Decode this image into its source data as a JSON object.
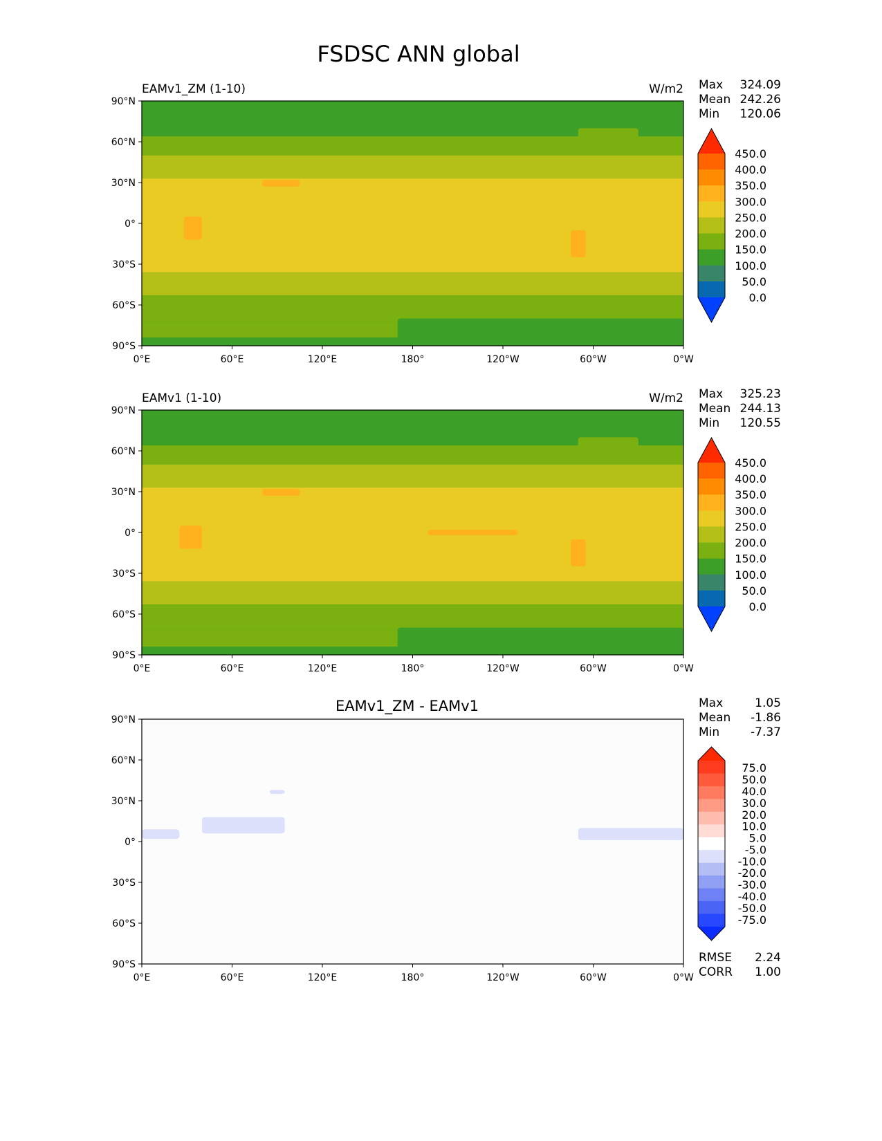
{
  "chart_data": {
    "type": "heatmap",
    "title": "FSDSC ANN global",
    "xticks": [
      "0°E",
      "60°E",
      "120°E",
      "180°",
      "120°W",
      "60°W",
      "0°W"
    ],
    "yticks": [
      "90°N",
      "60°N",
      "30°N",
      "0°",
      "30°S",
      "60°S",
      "90°S"
    ],
    "xlim": [
      0,
      360
    ],
    "ylim": [
      -90,
      90
    ],
    "panels": [
      {
        "title": "EAMv1_ZM (1-10)",
        "units": "W/m2",
        "stats": [
          [
            "Max",
            "324.09"
          ],
          [
            "Mean",
            "242.26"
          ],
          [
            "Min",
            "120.06"
          ]
        ],
        "colorbar": "abs",
        "background": "#3ca028",
        "zonal_bands": [
          {
            "lat": [
              64,
              90
            ],
            "color": "#3ca028"
          },
          {
            "lat": [
              50,
              64
            ],
            "color": "#7ab010"
          },
          {
            "lat": [
              33,
              50
            ],
            "color": "#b4c018"
          },
          {
            "lat": [
              -36,
              33
            ],
            "color": "#eacb23"
          },
          {
            "lat": [
              -53,
              -36
            ],
            "color": "#b4c018"
          },
          {
            "lat": [
              -72,
              -53
            ],
            "color": "#7ab010"
          },
          {
            "lat": [
              -84,
              -72
            ],
            "color": "#7ab010"
          },
          {
            "lat": [
              -90,
              -84
            ],
            "color": "#3ca028"
          }
        ],
        "patches": [
          {
            "lon": [
              290,
              330
            ],
            "lat": [
              58,
              70
            ],
            "color": "#7ab010"
          },
          {
            "lon": [
              170,
              360
            ],
            "lat": [
              -90,
              -70
            ],
            "color": "#3ca028"
          },
          {
            "lon": [
              80,
              105
            ],
            "lat": [
              27,
              32
            ],
            "color": "#ffb21e"
          },
          {
            "lon": [
              28,
              40
            ],
            "lat": [
              -12,
              5
            ],
            "color": "#ffb21e"
          },
          {
            "lon": [
              285,
              295
            ],
            "lat": [
              -25,
              -5
            ],
            "color": "#ffb21e"
          }
        ]
      },
      {
        "title": "EAMv1 (1-10)",
        "units": "W/m2",
        "stats": [
          [
            "Max",
            "325.23"
          ],
          [
            "Mean",
            "244.13"
          ],
          [
            "Min",
            "120.55"
          ]
        ],
        "colorbar": "abs",
        "background": "#3ca028",
        "zonal_bands": [
          {
            "lat": [
              64,
              90
            ],
            "color": "#3ca028"
          },
          {
            "lat": [
              50,
              64
            ],
            "color": "#7ab010"
          },
          {
            "lat": [
              33,
              50
            ],
            "color": "#b4c018"
          },
          {
            "lat": [
              -36,
              33
            ],
            "color": "#eacb23"
          },
          {
            "lat": [
              -53,
              -36
            ],
            "color": "#b4c018"
          },
          {
            "lat": [
              -72,
              -53
            ],
            "color": "#7ab010"
          },
          {
            "lat": [
              -84,
              -72
            ],
            "color": "#7ab010"
          },
          {
            "lat": [
              -90,
              -84
            ],
            "color": "#3ca028"
          }
        ],
        "patches": [
          {
            "lon": [
              290,
              330
            ],
            "lat": [
              58,
              70
            ],
            "color": "#7ab010"
          },
          {
            "lon": [
              170,
              360
            ],
            "lat": [
              -90,
              -70
            ],
            "color": "#3ca028"
          },
          {
            "lon": [
              80,
              105
            ],
            "lat": [
              27,
              32
            ],
            "color": "#ffb21e"
          },
          {
            "lon": [
              190,
              250
            ],
            "lat": [
              -2,
              2
            ],
            "color": "#ffb21e"
          },
          {
            "lon": [
              25,
              40
            ],
            "lat": [
              -12,
              5
            ],
            "color": "#ffb21e"
          },
          {
            "lon": [
              285,
              295
            ],
            "lat": [
              -25,
              -5
            ],
            "color": "#ffb21e"
          }
        ]
      },
      {
        "title": "EAMv1_ZM - EAMv1",
        "units": "",
        "stats": [
          [
            "Max",
            "1.05"
          ],
          [
            "Mean",
            "-1.86"
          ],
          [
            "Min",
            "-7.37"
          ]
        ],
        "extra_stats": [
          [
            "RMSE",
            "2.24"
          ],
          [
            "CORR",
            "1.00"
          ]
        ],
        "colorbar": "diff",
        "background": "#fcfcfc",
        "zonal_bands": [],
        "patches": [
          {
            "lon": [
              0,
              25
            ],
            "lat": [
              2,
              9
            ],
            "color": "#dce0fa"
          },
          {
            "lon": [
              40,
              95
            ],
            "lat": [
              6,
              18
            ],
            "color": "#dce0fa"
          },
          {
            "lon": [
              85,
              95
            ],
            "lat": [
              35,
              38
            ],
            "color": "#dce0fa"
          },
          {
            "lon": [
              290,
              360
            ],
            "lat": [
              1,
              10
            ],
            "color": "#dce0fa"
          }
        ]
      }
    ],
    "colorbars": {
      "abs": {
        "labels": [
          "450.0",
          "400.0",
          "350.0",
          "300.0",
          "250.0",
          "200.0",
          "150.0",
          "100.0",
          "50.0",
          "0.0"
        ],
        "extend_top": "#ff2a00",
        "colors": [
          "#ff6400",
          "#ff8c00",
          "#ffb21e",
          "#eacb23",
          "#b4c018",
          "#7ab010",
          "#3ca028",
          "#38856a",
          "#0868b0"
        ],
        "extend_bottom": "#0040ff"
      },
      "diff": {
        "labels": [
          "75.0",
          "50.0",
          "40.0",
          "30.0",
          "20.0",
          "10.0",
          "5.0",
          "-5.0",
          "-10.0",
          "-20.0",
          "-30.0",
          "-40.0",
          "-50.0",
          "-75.0"
        ],
        "extend_top": "#ff2a00",
        "colors": [
          "#ff3d1e",
          "#ff5a3c",
          "#ff7a5f",
          "#ff9a85",
          "#ffbdb0",
          "#ffdcd6",
          "#ffffff",
          "#dce0fa",
          "#b4bef5",
          "#90a0f5",
          "#6e82f5",
          "#4a64f5",
          "#2848ff"
        ],
        "extend_bottom": "#0a2cff"
      }
    }
  }
}
